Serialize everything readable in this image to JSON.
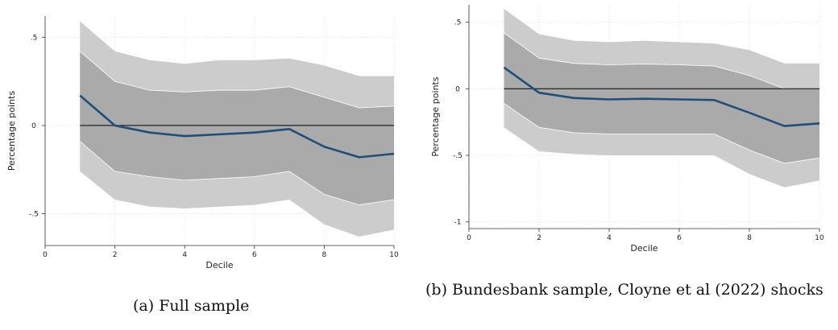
{
  "chart_data": [
    {
      "type": "line",
      "xlabel": "Decile",
      "ylabel": "Percentage points",
      "xlim": [
        0,
        10
      ],
      "ylim": [
        -0.68,
        0.62
      ],
      "x_ticks": [
        0,
        2,
        4,
        6,
        8,
        10
      ],
      "y_ticks": [
        -0.5,
        0,
        0.5
      ],
      "y_tick_labels": [
        "-.5",
        "0",
        ".5"
      ],
      "x_tick_labels": [
        "0",
        "2",
        "4",
        "6",
        "8",
        "10"
      ],
      "grid": true,
      "colors": {
        "line": "#1f4e79",
        "inner_band": "#aaaaaa",
        "outer_band": "#cccccc",
        "zero": "#000000"
      },
      "x": [
        1,
        2,
        3,
        4,
        5,
        6,
        7,
        8,
        9,
        10
      ],
      "estimate": [
        0.17,
        0.0,
        -0.04,
        -0.06,
        -0.05,
        -0.04,
        -0.02,
        -0.12,
        -0.18,
        -0.16
      ],
      "inner_upper": [
        0.42,
        0.25,
        0.2,
        0.19,
        0.2,
        0.2,
        0.22,
        0.16,
        0.1,
        0.11
      ],
      "inner_lower": [
        -0.09,
        -0.26,
        -0.29,
        -0.31,
        -0.3,
        -0.29,
        -0.26,
        -0.39,
        -0.45,
        -0.42
      ],
      "outer_upper": [
        0.59,
        0.42,
        0.37,
        0.35,
        0.37,
        0.37,
        0.38,
        0.34,
        0.28,
        0.28
      ],
      "outer_lower": [
        -0.26,
        -0.42,
        -0.46,
        -0.47,
        -0.46,
        -0.45,
        -0.42,
        -0.56,
        -0.63,
        -0.59
      ]
    },
    {
      "type": "line",
      "xlabel": "Decile",
      "ylabel": "Percentage points",
      "xlim": [
        0,
        10
      ],
      "ylim": [
        -1.05,
        0.63
      ],
      "x_ticks": [
        0,
        2,
        4,
        6,
        8,
        10
      ],
      "y_ticks": [
        -1,
        -0.5,
        0,
        0.5
      ],
      "y_tick_labels": [
        "-1",
        "-.5",
        "0",
        ".5"
      ],
      "x_tick_labels": [
        "0",
        "2",
        "4",
        "6",
        "8",
        "10"
      ],
      "grid": true,
      "colors": {
        "line": "#1f4e79",
        "inner_band": "#aaaaaa",
        "outer_band": "#cccccc",
        "zero": "#000000"
      },
      "x": [
        1,
        2,
        3,
        4,
        5,
        6,
        7,
        8,
        9,
        10
      ],
      "estimate": [
        0.16,
        -0.03,
        -0.07,
        -0.08,
        -0.075,
        -0.08,
        -0.085,
        -0.18,
        -0.28,
        -0.26
      ],
      "inner_upper": [
        0.42,
        0.23,
        0.19,
        0.18,
        0.185,
        0.18,
        0.17,
        0.1,
        0.0,
        0.0
      ],
      "inner_lower": [
        -0.11,
        -0.29,
        -0.33,
        -0.34,
        -0.34,
        -0.34,
        -0.34,
        -0.46,
        -0.56,
        -0.52
      ],
      "outer_upper": [
        0.6,
        0.41,
        0.36,
        0.35,
        0.36,
        0.35,
        0.34,
        0.29,
        0.19,
        0.19
      ],
      "outer_lower": [
        -0.29,
        -0.47,
        -0.49,
        -0.5,
        -0.5,
        -0.5,
        -0.5,
        -0.64,
        -0.74,
        -0.69
      ]
    }
  ],
  "captions": {
    "a": "(a) Full sample",
    "b": "(b) Bundesbank sample, Cloyne et al (2022) shocks"
  }
}
